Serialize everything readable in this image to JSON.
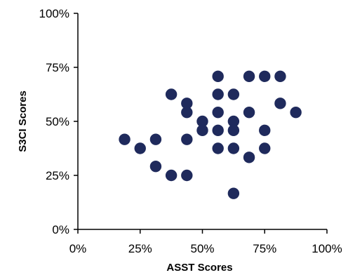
{
  "chart_data": {
    "type": "scatter",
    "title": "",
    "xlabel": "ASST Scores",
    "ylabel": "S3CI Scores",
    "xlim": [
      0,
      100
    ],
    "ylim": [
      0,
      100
    ],
    "x_ticks": [
      0,
      25,
      50,
      75,
      100
    ],
    "y_ticks": [
      0,
      25,
      50,
      75,
      100
    ],
    "x_tick_labels": [
      "0%",
      "25%",
      "50%",
      "75%",
      "100%"
    ],
    "y_tick_labels": [
      "0%",
      "25%",
      "50%",
      "75%",
      "100%"
    ],
    "grid": false,
    "legend": "none",
    "marker_color": "#1f2a5c",
    "points": [
      {
        "x": 18.75,
        "y": 41.67
      },
      {
        "x": 25.0,
        "y": 37.5
      },
      {
        "x": 31.25,
        "y": 41.67
      },
      {
        "x": 31.25,
        "y": 29.17
      },
      {
        "x": 37.5,
        "y": 62.5
      },
      {
        "x": 37.5,
        "y": 25.0
      },
      {
        "x": 43.75,
        "y": 58.33
      },
      {
        "x": 43.75,
        "y": 54.17
      },
      {
        "x": 43.75,
        "y": 41.67
      },
      {
        "x": 43.75,
        "y": 25.0
      },
      {
        "x": 50.0,
        "y": 50.0
      },
      {
        "x": 50.0,
        "y": 45.83
      },
      {
        "x": 56.25,
        "y": 70.83
      },
      {
        "x": 56.25,
        "y": 62.5
      },
      {
        "x": 56.25,
        "y": 54.17
      },
      {
        "x": 56.25,
        "y": 45.83
      },
      {
        "x": 56.25,
        "y": 37.5
      },
      {
        "x": 62.5,
        "y": 62.5
      },
      {
        "x": 62.5,
        "y": 50.0
      },
      {
        "x": 62.5,
        "y": 45.83
      },
      {
        "x": 62.5,
        "y": 37.5
      },
      {
        "x": 62.5,
        "y": 16.67
      },
      {
        "x": 68.75,
        "y": 70.83
      },
      {
        "x": 68.75,
        "y": 54.17
      },
      {
        "x": 68.75,
        "y": 33.33
      },
      {
        "x": 75.0,
        "y": 70.83
      },
      {
        "x": 75.0,
        "y": 45.83
      },
      {
        "x": 75.0,
        "y": 37.5
      },
      {
        "x": 81.25,
        "y": 70.83
      },
      {
        "x": 81.25,
        "y": 58.33
      },
      {
        "x": 87.5,
        "y": 54.17
      }
    ]
  }
}
